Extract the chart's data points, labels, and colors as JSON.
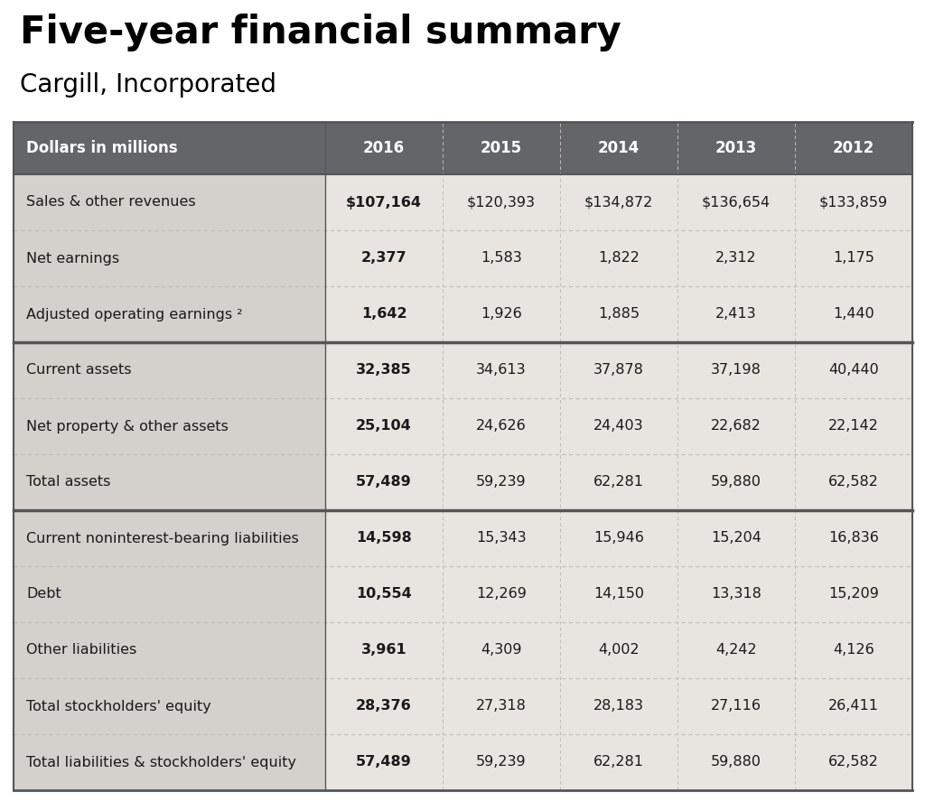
{
  "title": "Five-year financial summary",
  "subtitle": "Cargill, Incorporated",
  "header_bg": "#636569",
  "header_text_color": "#ffffff",
  "col_header": "Dollars in millions",
  "years": [
    "2016",
    "2015",
    "2014",
    "2013",
    "2012"
  ],
  "row_label_bg": "#d4d0cb",
  "data_col_bg": "#e8e5e0",
  "thick_border_color": "#555555",
  "thin_border_color": "#c0bdb8",
  "rows": [
    {
      "label": "Sales & other revenues",
      "values": [
        "$107,164",
        "$120,393",
        "$134,872",
        "$136,654",
        "$133,859"
      ],
      "bold_first": true,
      "group": 0
    },
    {
      "label": "Net earnings",
      "values": [
        "2,377",
        "1,583",
        "1,822",
        "2,312",
        "1,175"
      ],
      "bold_first": true,
      "group": 0
    },
    {
      "label": "Adjusted operating earnings ²",
      "values": [
        "1,642",
        "1,926",
        "1,885",
        "2,413",
        "1,440"
      ],
      "bold_first": true,
      "group": 0
    },
    {
      "label": "Current assets",
      "values": [
        "32,385",
        "34,613",
        "37,878",
        "37,198",
        "40,440"
      ],
      "bold_first": true,
      "group": 1
    },
    {
      "label": "Net property & other assets",
      "values": [
        "25,104",
        "24,626",
        "24,403",
        "22,682",
        "22,142"
      ],
      "bold_first": true,
      "group": 1
    },
    {
      "label": "Total assets",
      "values": [
        "57,489",
        "59,239",
        "62,281",
        "59,880",
        "62,582"
      ],
      "bold_first": true,
      "group": 1
    },
    {
      "label": "Current noninterest-bearing liabilities",
      "values": [
        "14,598",
        "15,343",
        "15,946",
        "15,204",
        "16,836"
      ],
      "bold_first": true,
      "group": 2
    },
    {
      "label": "Debt",
      "values": [
        "10,554",
        "12,269",
        "14,150",
        "13,318",
        "15,209"
      ],
      "bold_first": true,
      "group": 2
    },
    {
      "label": "Other liabilities",
      "values": [
        "3,961",
        "4,309",
        "4,002",
        "4,242",
        "4,126"
      ],
      "bold_first": true,
      "group": 2
    },
    {
      "label": "Total stockholders' equity",
      "values": [
        "28,376",
        "27,318",
        "28,183",
        "27,116",
        "26,411"
      ],
      "bold_first": true,
      "group": 2
    },
    {
      "label": "Total liabilities & stockholders' equity",
      "values": [
        "57,489",
        "59,239",
        "62,281",
        "59,880",
        "62,582"
      ],
      "bold_first": true,
      "group": 2
    }
  ],
  "thick_border_after_rows": [
    2,
    5
  ],
  "background_color": "#ffffff",
  "title_fontsize": 30,
  "subtitle_fontsize": 20,
  "header_fontsize": 12,
  "cell_fontsize": 11.5
}
